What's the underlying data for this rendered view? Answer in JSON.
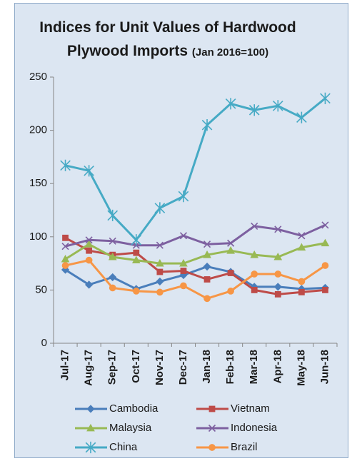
{
  "chart_data": {
    "type": "line",
    "title": "Indices for Unit Values of Hardwood Plywood Imports",
    "subtitle": "(Jan 2016=100)",
    "categories": [
      "Jul-17",
      "Aug-17",
      "Sep-17",
      "Oct-17",
      "Nov-17",
      "Dec-17",
      "Jan-18",
      "Feb-18",
      "Mar-18",
      "Apr-18",
      "May-18",
      "Jun-18"
    ],
    "series": [
      {
        "name": "Cambodia",
        "color": "#4a7ebb",
        "marker": "diamond",
        "values": [
          69,
          55,
          62,
          51,
          58,
          64,
          72,
          67,
          53,
          53,
          51,
          52
        ]
      },
      {
        "name": "Vietnam",
        "color": "#be4b48",
        "marker": "square",
        "values": [
          99,
          87,
          83,
          85,
          67,
          68,
          60,
          66,
          50,
          46,
          48,
          50
        ]
      },
      {
        "name": "Malaysia",
        "color": "#98b954",
        "marker": "triangle",
        "values": [
          79,
          93,
          81,
          78,
          75,
          75,
          83,
          87,
          83,
          81,
          90,
          94
        ]
      },
      {
        "name": "Indonesia",
        "color": "#7d60a0",
        "marker": "x",
        "values": [
          91,
          97,
          96,
          92,
          92,
          101,
          93,
          94,
          110,
          107,
          101,
          111
        ]
      },
      {
        "name": "China",
        "color": "#46aac5",
        "marker": "star",
        "values": [
          167,
          162,
          120,
          97,
          127,
          138,
          205,
          225,
          219,
          223,
          212,
          230
        ]
      },
      {
        "name": "Brazil",
        "color": "#f79646",
        "marker": "circle",
        "values": [
          73,
          78,
          52,
          49,
          48,
          54,
          42,
          49,
          65,
          65,
          58,
          73
        ]
      }
    ],
    "ylim": [
      0,
      250
    ],
    "yticks": [
      0,
      50,
      100,
      150,
      200,
      250
    ],
    "grid": false
  }
}
